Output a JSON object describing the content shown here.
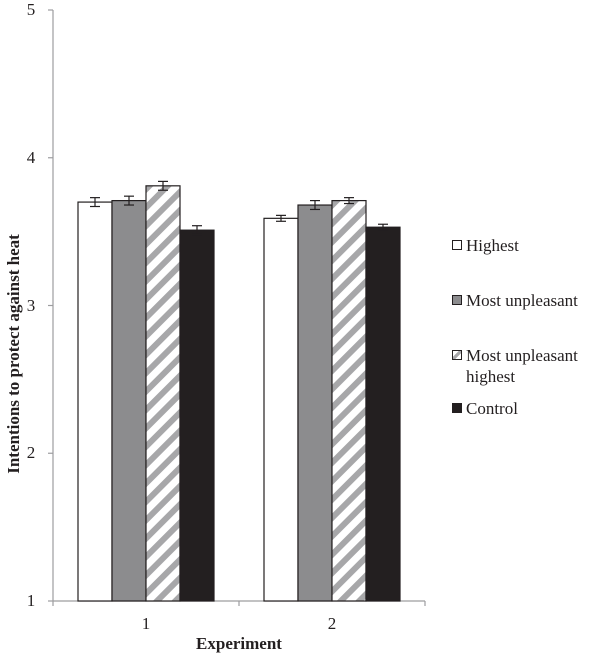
{
  "chart_data": {
    "type": "bar",
    "title": "",
    "xlabel": "Experiment",
    "ylabel": "Intentions to protect against heat",
    "ylim": [
      1,
      5
    ],
    "yticks": [
      "1",
      "2",
      "3",
      "4",
      "5"
    ],
    "categories": [
      "1",
      "2"
    ],
    "grid": false,
    "legend_position": "right",
    "series": [
      {
        "name": "Highest",
        "values": [
          3.7,
          3.59
        ],
        "errors": [
          0.03,
          0.02
        ],
        "fill": "#ffffff",
        "pattern": "solid"
      },
      {
        "name": "Most unpleasant",
        "values": [
          3.71,
          3.68
        ],
        "errors": [
          0.03,
          0.03
        ],
        "fill": "#8c8c8e",
        "pattern": "solid"
      },
      {
        "name": "Most unpleasant highest",
        "values": [
          3.81,
          3.71
        ],
        "errors": [
          0.03,
          0.02
        ],
        "fill": "#ffffff",
        "pattern": "diagonal-hatch",
        "hatch_color": "#a7a7a9"
      },
      {
        "name": "Control",
        "values": [
          3.51,
          3.53
        ],
        "errors": [
          0.03,
          0.02
        ],
        "fill": "#231f20",
        "pattern": "solid"
      }
    ]
  },
  "legend": {
    "items": [
      {
        "label": "Highest",
        "fill": "#ffffff"
      },
      {
        "label": "Most unpleasant",
        "fill": "#8c8c8e"
      },
      {
        "label": "Most unpleasant\nhighest",
        "fill": "hatch"
      },
      {
        "label": "Control",
        "fill": "#231f20"
      }
    ]
  },
  "axes": {
    "y_title": "Intentions to protect against heat",
    "x_title": "Experiment",
    "y_ticks": [
      "1",
      "2",
      "3",
      "4",
      "5"
    ],
    "x_ticks": [
      "1",
      "2"
    ]
  }
}
